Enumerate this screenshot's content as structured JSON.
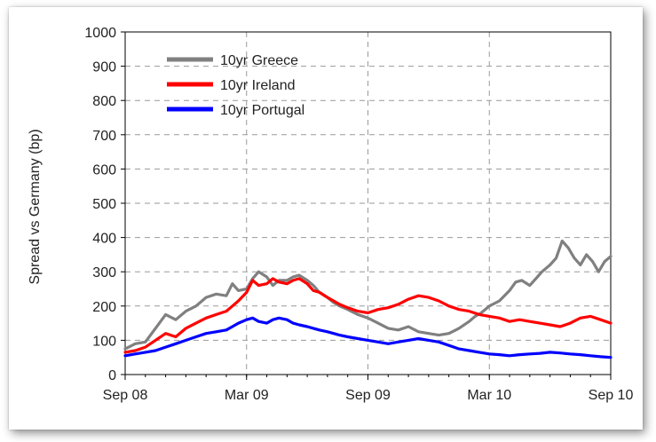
{
  "chart_data": {
    "type": "line",
    "ylabel": "Spread vs Germany (bp)",
    "xlabel": "",
    "ylim": [
      0,
      1000
    ],
    "yticks": [
      0,
      100,
      200,
      300,
      400,
      500,
      600,
      700,
      800,
      900,
      1000
    ],
    "xticks": [
      "Sep 08",
      "Mar 09",
      "Sep 09",
      "Mar 10",
      "Sep 10"
    ],
    "x_months_range": [
      0,
      24
    ],
    "grid": true,
    "legend_position": "top-left",
    "series": [
      {
        "name": "10yr Greece",
        "color": "#808080",
        "points": [
          [
            0,
            75
          ],
          [
            0.5,
            90
          ],
          [
            1,
            95
          ],
          [
            1.5,
            135
          ],
          [
            2,
            175
          ],
          [
            2.5,
            160
          ],
          [
            3,
            185
          ],
          [
            3.5,
            200
          ],
          [
            4,
            225
          ],
          [
            4.5,
            235
          ],
          [
            5,
            230
          ],
          [
            5.3,
            265
          ],
          [
            5.6,
            245
          ],
          [
            6,
            250
          ],
          [
            6.3,
            280
          ],
          [
            6.6,
            300
          ],
          [
            7,
            285
          ],
          [
            7.3,
            260
          ],
          [
            7.6,
            275
          ],
          [
            8,
            275
          ],
          [
            8.3,
            285
          ],
          [
            8.6,
            290
          ],
          [
            9,
            275
          ],
          [
            9.3,
            260
          ],
          [
            9.6,
            240
          ],
          [
            10,
            225
          ],
          [
            10.3,
            210
          ],
          [
            10.6,
            200
          ],
          [
            11,
            190
          ],
          [
            11.5,
            175
          ],
          [
            12,
            165
          ],
          [
            12.5,
            150
          ],
          [
            13,
            135
          ],
          [
            13.5,
            130
          ],
          [
            14,
            140
          ],
          [
            14.5,
            125
          ],
          [
            15,
            120
          ],
          [
            15.5,
            115
          ],
          [
            16,
            120
          ],
          [
            16.5,
            135
          ],
          [
            17,
            155
          ],
          [
            17.3,
            170
          ],
          [
            17.6,
            180
          ],
          [
            18,
            200
          ],
          [
            18.5,
            215
          ],
          [
            19,
            245
          ],
          [
            19.3,
            270
          ],
          [
            19.6,
            275
          ],
          [
            20,
            260
          ],
          [
            20.3,
            280
          ],
          [
            20.6,
            300
          ],
          [
            21,
            320
          ],
          [
            21.3,
            340
          ],
          [
            21.6,
            390
          ],
          [
            21.9,
            370
          ],
          [
            22.2,
            340
          ],
          [
            22.5,
            320
          ],
          [
            22.8,
            350
          ],
          [
            23.1,
            330
          ],
          [
            23.4,
            300
          ],
          [
            23.7,
            330
          ],
          [
            24,
            345
          ]
        ]
      },
      {
        "name": "10yr Ireland",
        "color": "#ff0000",
        "points": [
          [
            0,
            65
          ],
          [
            0.5,
            70
          ],
          [
            1,
            80
          ],
          [
            1.5,
            100
          ],
          [
            2,
            120
          ],
          [
            2.5,
            110
          ],
          [
            3,
            135
          ],
          [
            3.5,
            150
          ],
          [
            4,
            165
          ],
          [
            4.5,
            175
          ],
          [
            5,
            185
          ],
          [
            5.3,
            200
          ],
          [
            5.6,
            215
          ],
          [
            6,
            240
          ],
          [
            6.3,
            275
          ],
          [
            6.6,
            260
          ],
          [
            7,
            265
          ],
          [
            7.3,
            280
          ],
          [
            7.6,
            270
          ],
          [
            8,
            265
          ],
          [
            8.3,
            275
          ],
          [
            8.6,
            280
          ],
          [
            9,
            265
          ],
          [
            9.3,
            245
          ],
          [
            9.6,
            240
          ],
          [
            10,
            225
          ],
          [
            10.3,
            215
          ],
          [
            10.6,
            205
          ],
          [
            11,
            195
          ],
          [
            11.5,
            185
          ],
          [
            12,
            180
          ],
          [
            12.5,
            190
          ],
          [
            13,
            195
          ],
          [
            13.5,
            205
          ],
          [
            14,
            220
          ],
          [
            14.5,
            230
          ],
          [
            15,
            225
          ],
          [
            15.5,
            215
          ],
          [
            16,
            200
          ],
          [
            16.5,
            190
          ],
          [
            17,
            185
          ],
          [
            17.5,
            175
          ],
          [
            18,
            170
          ],
          [
            18.5,
            165
          ],
          [
            19,
            155
          ],
          [
            19.5,
            160
          ],
          [
            20,
            155
          ],
          [
            20.5,
            150
          ],
          [
            21,
            145
          ],
          [
            21.5,
            140
          ],
          [
            22,
            150
          ],
          [
            22.5,
            165
          ],
          [
            23,
            170
          ],
          [
            23.5,
            160
          ],
          [
            24,
            150
          ]
        ]
      },
      {
        "name": "10yr Portugal",
        "color": "#0000ff",
        "points": [
          [
            0,
            55
          ],
          [
            0.5,
            60
          ],
          [
            1,
            65
          ],
          [
            1.5,
            70
          ],
          [
            2,
            80
          ],
          [
            2.5,
            90
          ],
          [
            3,
            100
          ],
          [
            3.5,
            110
          ],
          [
            4,
            120
          ],
          [
            4.5,
            125
          ],
          [
            5,
            130
          ],
          [
            5.3,
            140
          ],
          [
            5.6,
            150
          ],
          [
            6,
            160
          ],
          [
            6.3,
            165
          ],
          [
            6.6,
            155
          ],
          [
            7,
            150
          ],
          [
            7.3,
            160
          ],
          [
            7.6,
            165
          ],
          [
            8,
            160
          ],
          [
            8.3,
            150
          ],
          [
            8.6,
            145
          ],
          [
            9,
            140
          ],
          [
            9.3,
            135
          ],
          [
            9.6,
            130
          ],
          [
            10,
            125
          ],
          [
            10.3,
            120
          ],
          [
            10.6,
            115
          ],
          [
            11,
            110
          ],
          [
            11.5,
            105
          ],
          [
            12,
            100
          ],
          [
            12.5,
            95
          ],
          [
            13,
            90
          ],
          [
            13.5,
            95
          ],
          [
            14,
            100
          ],
          [
            14.5,
            105
          ],
          [
            15,
            100
          ],
          [
            15.5,
            95
          ],
          [
            16,
            85
          ],
          [
            16.5,
            75
          ],
          [
            17,
            70
          ],
          [
            17.5,
            65
          ],
          [
            18,
            60
          ],
          [
            18.5,
            58
          ],
          [
            19,
            55
          ],
          [
            19.5,
            58
          ],
          [
            20,
            60
          ],
          [
            20.5,
            62
          ],
          [
            21,
            65
          ],
          [
            21.5,
            63
          ],
          [
            22,
            60
          ],
          [
            22.5,
            58
          ],
          [
            23,
            55
          ],
          [
            23.5,
            52
          ],
          [
            24,
            50
          ]
        ]
      }
    ]
  }
}
